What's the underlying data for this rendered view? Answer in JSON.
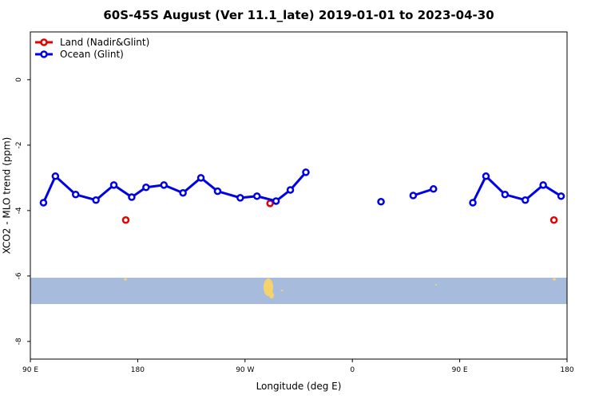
{
  "chart_data": {
    "type": "line",
    "title": "60S-45S August (Ver 11.1_late)   2019-01-01 to 2023-04-30",
    "x_label": "Longitude (deg E)",
    "y_label": "XCO2 - MLO trend (ppm)",
    "xlim": [
      90,
      540
    ],
    "ylim": [
      -8.54,
      1.46
    ],
    "xticks": [
      {
        "value": 90,
        "label": "90 E"
      },
      180,
      {
        "value": 270,
        "label": "90 W"
      },
      {
        "value": 360,
        "label": "0"
      },
      {
        "value": 450,
        "label": "90 E"
      },
      {
        "value": 540,
        "label": "180"
      }
    ],
    "yticks": [
      0,
      -2,
      -4,
      -6,
      -8
    ],
    "legend": "top-left",
    "series": [
      {
        "name": "Land (Nadir&Glint)",
        "color": "#e60000",
        "lines": false,
        "x": [
          170,
          291,
          529
        ],
        "values": [
          -4.29,
          -3.78,
          -4.29
        ]
      },
      {
        "name": "Ocean (Glint)",
        "color": "#0000e6",
        "lines": true,
        "x": [
          101,
          111,
          128,
          145,
          160,
          175,
          187,
          202,
          218,
          233,
          247,
          266,
          280,
          296,
          308,
          321,
          null,
          384,
          null,
          411,
          428,
          null,
          461,
          472,
          488,
          505,
          520,
          535
        ],
        "values": [
          -3.76,
          -2.95,
          -3.51,
          -3.68,
          -3.22,
          -3.59,
          -3.29,
          -3.22,
          -3.46,
          -3.0,
          -3.41,
          -3.61,
          -3.56,
          -3.71,
          -3.37,
          -2.83,
          null,
          -3.73,
          null,
          -3.54,
          -3.34,
          null,
          -3.76,
          -2.95,
          -3.51,
          -3.68,
          -3.22,
          -3.56
        ]
      }
    ]
  }
}
